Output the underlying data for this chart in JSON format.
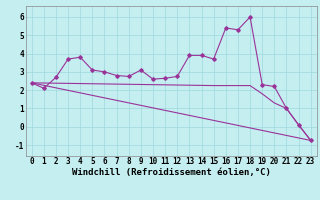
{
  "xlabel": "Windchill (Refroidissement éolien,°C)",
  "bg_color": "#c5eef0",
  "line_color": "#993399",
  "xlim": [
    -0.5,
    23.5
  ],
  "ylim": [
    -1.6,
    6.6
  ],
  "yticks": [
    -1,
    0,
    1,
    2,
    3,
    4,
    5,
    6
  ],
  "xticks": [
    0,
    1,
    2,
    3,
    4,
    5,
    6,
    7,
    8,
    9,
    10,
    11,
    12,
    13,
    14,
    15,
    16,
    17,
    18,
    19,
    20,
    21,
    22,
    23
  ],
  "line1_x": [
    0,
    1,
    2,
    3,
    4,
    5,
    6,
    7,
    8,
    9,
    10,
    11,
    12,
    13,
    14,
    15,
    16,
    17,
    18,
    19,
    20,
    21,
    22,
    23
  ],
  "line1_y": [
    2.4,
    2.1,
    2.7,
    3.7,
    3.8,
    3.1,
    3.0,
    2.8,
    2.75,
    3.1,
    2.6,
    2.65,
    2.75,
    3.9,
    3.9,
    3.7,
    5.4,
    5.3,
    6.0,
    2.3,
    2.2,
    1.0,
    0.1,
    -0.75
  ],
  "line2_x": [
    0,
    23
  ],
  "line2_y": [
    2.4,
    -0.75
  ],
  "line3_x": [
    0,
    5,
    10,
    15,
    18,
    19,
    20,
    21,
    22,
    23
  ],
  "line3_y": [
    2.4,
    2.35,
    2.3,
    2.25,
    2.25,
    1.8,
    1.3,
    1.0,
    0.1,
    -0.75
  ],
  "grid_color": "#9dd9dc",
  "tick_fontsize": 5.5,
  "label_fontsize": 6.5
}
